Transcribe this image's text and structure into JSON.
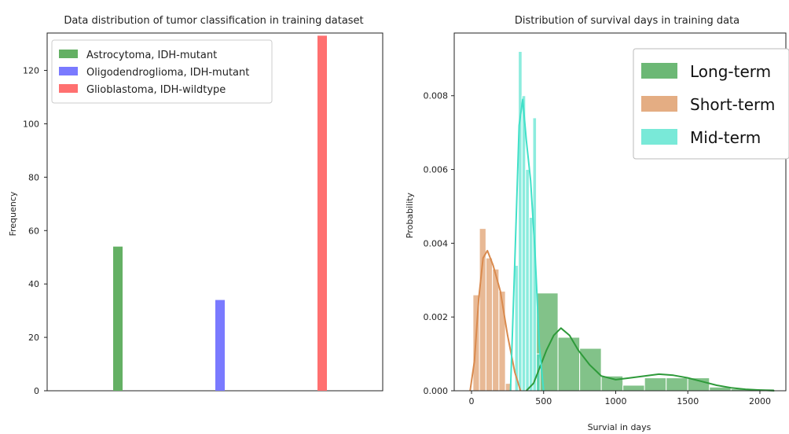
{
  "chart_data": [
    {
      "type": "bar",
      "title": "Data distribution of tumor classification in training dataset",
      "xlabel": "",
      "ylabel": "Frequency",
      "ylim": [
        0,
        134
      ],
      "yticks": [
        0,
        20,
        40,
        60,
        80,
        100,
        120
      ],
      "grid": false,
      "legend_position": "top-left",
      "series": [
        {
          "name": "Astrocytoma, IDH-mutant",
          "value": 54,
          "color": "#64b064"
        },
        {
          "name": "Oligodendroglioma, IDH-mutant",
          "value": 34,
          "color": "#7a7aff"
        },
        {
          "name": "Glioblastoma, IDH-wildtype",
          "value": 133,
          "color": "#ff7070"
        }
      ]
    },
    {
      "type": "histogram",
      "title": "Distribution of survival days in training data",
      "xlabel": "Survial in days",
      "ylabel": "Probability",
      "xlim": [
        -120,
        2180
      ],
      "ylim": [
        0,
        0.0097
      ],
      "xticks": [
        0,
        500,
        1000,
        1500,
        2000
      ],
      "yticks": [
        0.0,
        0.002,
        0.004,
        0.006,
        0.008
      ],
      "ytick_labels": [
        "0.000",
        "0.002",
        "0.004",
        "0.006",
        "0.008"
      ],
      "grid": false,
      "legend_position": "top-right",
      "series": [
        {
          "name": "Long-term",
          "color": "#2e9a3a",
          "bins": [
            [
              450,
              600,
              0.00265
            ],
            [
              600,
              750,
              0.00145
            ],
            [
              750,
              900,
              0.00115
            ],
            [
              900,
              1050,
              0.0004
            ],
            [
              1050,
              1200,
              0.00015
            ],
            [
              1200,
              1350,
              0.00035
            ],
            [
              1350,
              1500,
              0.00035
            ],
            [
              1500,
              1650,
              0.00035
            ],
            [
              1650,
              1800,
              0.0001
            ],
            [
              1800,
              1950,
              5e-05
            ],
            [
              1950,
              2100,
              5e-05
            ]
          ],
          "kde": [
            [
              380,
              0.0
            ],
            [
              430,
              0.0002
            ],
            [
              470,
              0.0006
            ],
            [
              520,
              0.0011
            ],
            [
              570,
              0.0015
            ],
            [
              620,
              0.0017
            ],
            [
              680,
              0.0015
            ],
            [
              740,
              0.0011
            ],
            [
              820,
              0.0007
            ],
            [
              900,
              0.0004
            ],
            [
              1000,
              0.0003
            ],
            [
              1100,
              0.00035
            ],
            [
              1200,
              0.0004
            ],
            [
              1300,
              0.00045
            ],
            [
              1400,
              0.00042
            ],
            [
              1500,
              0.00035
            ],
            [
              1600,
              0.00025
            ],
            [
              1700,
              0.00015
            ],
            [
              1800,
              8e-05
            ],
            [
              1900,
              4e-05
            ],
            [
              2000,
              2e-05
            ],
            [
              2100,
              0.0
            ]
          ]
        },
        {
          "name": "Short-term",
          "color": "#d98a4e",
          "bins": [
            [
              10,
              55,
              0.0026
            ],
            [
              55,
              100,
              0.0044
            ],
            [
              100,
              145,
              0.0036
            ],
            [
              145,
              190,
              0.0033
            ],
            [
              190,
              235,
              0.0027
            ],
            [
              235,
              280,
              0.0002
            ]
          ],
          "kde": [
            [
              -10,
              0.0
            ],
            [
              20,
              0.0008
            ],
            [
              50,
              0.0025
            ],
            [
              80,
              0.0036
            ],
            [
              110,
              0.0038
            ],
            [
              150,
              0.0034
            ],
            [
              200,
              0.0027
            ],
            [
              250,
              0.0015
            ],
            [
              300,
              0.0005
            ],
            [
              340,
              0.0
            ]
          ]
        },
        {
          "name": "Mid-term",
          "color": "#40e0c8",
          "bins": [
            [
              300,
              325,
              0.0034
            ],
            [
              325,
              350,
              0.0092
            ],
            [
              350,
              375,
              0.008
            ],
            [
              375,
              400,
              0.006
            ],
            [
              400,
              425,
              0.0047
            ],
            [
              425,
              450,
              0.0074
            ],
            [
              450,
              475,
              0.001
            ]
          ],
          "kde": [
            [
              270,
              0.0
            ],
            [
              300,
              0.0035
            ],
            [
              330,
              0.0072
            ],
            [
              355,
              0.0079
            ],
            [
              380,
              0.0068
            ],
            [
              410,
              0.0057
            ],
            [
              440,
              0.0038
            ],
            [
              470,
              0.0012
            ],
            [
              500,
              0.0
            ]
          ]
        }
      ]
    }
  ]
}
